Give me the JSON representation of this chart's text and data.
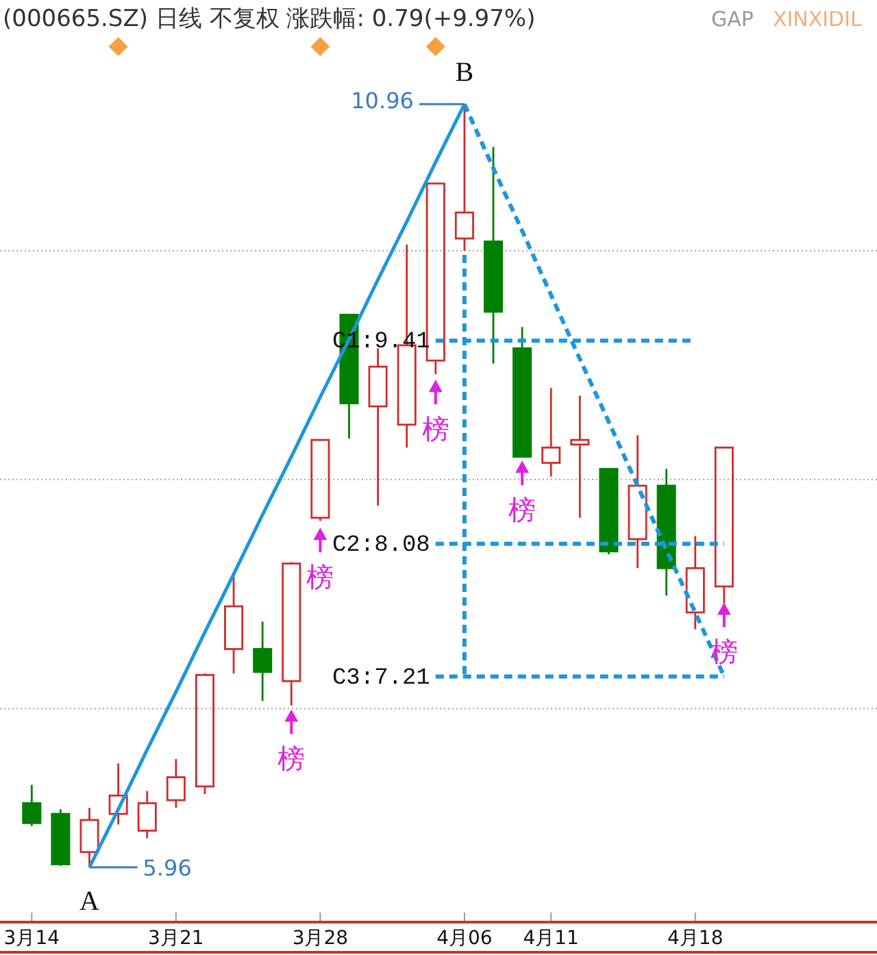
{
  "chart_data": {
    "type": "candlestick",
    "title": "(000665.SZ) 日线 不复权 涨跌幅: 0.79(+9.97%)",
    "annotations": [
      "GAP",
      "XINXIDIL",
      {
        "text": "A",
        "y": 5.96
      },
      {
        "text": "B",
        "x": "4月06",
        "y": 10.96
      }
    ],
    "categories": [
      "3月14",
      null,
      null,
      null,
      null,
      "3月21",
      null,
      null,
      null,
      null,
      "3月28",
      null,
      null,
      null,
      null,
      "4月06",
      null,
      null,
      "4月11",
      null,
      null,
      null,
      null,
      "4月18",
      null
    ],
    "ohlc": [
      [
        6.38,
        6.5,
        6.23,
        6.25
      ],
      [
        6.31,
        6.34,
        5.97,
        5.98
      ],
      [
        6.06,
        6.35,
        5.96,
        6.27
      ],
      [
        6.31,
        6.64,
        6.24,
        6.43
      ],
      [
        6.2,
        6.46,
        6.15,
        6.38
      ],
      [
        6.4,
        6.67,
        6.35,
        6.55
      ],
      [
        6.49,
        7.23,
        6.44,
        7.22
      ],
      [
        7.39,
        7.87,
        7.23,
        7.67
      ],
      [
        7.39,
        7.57,
        7.05,
        7.24
      ],
      [
        7.18,
        7.96,
        7.02,
        7.95
      ],
      [
        8.25,
        8.76,
        8.23,
        8.76
      ],
      [
        9.58,
        9.58,
        8.77,
        9.0
      ],
      [
        8.98,
        9.36,
        8.33,
        9.24
      ],
      [
        8.86,
        10.04,
        8.71,
        9.38
      ],
      [
        9.28,
        10.44,
        9.19,
        10.44
      ],
      [
        10.08,
        10.96,
        10.0,
        10.25
      ],
      [
        10.06,
        10.68,
        9.26,
        9.6
      ],
      [
        9.36,
        9.5,
        8.65,
        8.65
      ],
      [
        8.61,
        9.1,
        8.52,
        8.71
      ],
      [
        8.73,
        9.05,
        8.25,
        8.76
      ],
      [
        8.57,
        8.57,
        8.01,
        8.03
      ],
      [
        8.11,
        8.79,
        7.92,
        8.46
      ],
      [
        8.46,
        8.57,
        7.74,
        7.92
      ],
      [
        7.63,
        8.13,
        7.52,
        7.92
      ],
      [
        7.8,
        8.71,
        7.69,
        8.71
      ]
    ],
    "colors": [
      "#008000",
      "#008000",
      "#d02c2c",
      "#d02c2c",
      "#d02c2c",
      "#d02c2c",
      "#d02c2c",
      "#d02c2c",
      "#008000",
      "#d02c2c",
      "#d02c2c",
      "#008000",
      "#d02c2c",
      "#d02c2c",
      "#d02c2c",
      "#d02c2c",
      "#008000",
      "#008000",
      "#d02c2c",
      "#d02c2c",
      "#008000",
      "#d02c2c",
      "#008000",
      "#d02c2c",
      "#d02c2c"
    ],
    "yticks": [
      {
        "value": 7,
        "label": null
      },
      {
        "value": 8.5,
        "label": null
      },
      {
        "value": 10,
        "label": null
      }
    ],
    "grid": "y",
    "tick_labels": "x",
    "ref_lines": [
      {
        "axis": "x",
        "value": "4月06",
        "color": "#1e96dc",
        "line_style": "dashed"
      }
    ],
    "series": [
      {
        "type": "line",
        "color": "#1e96dc",
        "line_style": "solid",
        "values": [
          null,
          null,
          5.96,
          6.34,
          6.73,
          7.11,
          7.5,
          7.88,
          8.27,
          8.65,
          9.04,
          9.42,
          9.81,
          10.19,
          10.58,
          10.96,
          null,
          null,
          null,
          null,
          null,
          null,
          null,
          null,
          null
        ],
        "value_labels": [
          null,
          null,
          "5.96",
          null,
          null,
          null,
          null,
          null,
          null,
          null,
          null,
          null,
          null,
          null,
          null,
          "10.96",
          null,
          null,
          null,
          null,
          null,
          null,
          null,
          null,
          null
        ]
      },
      {
        "type": "line",
        "color": "#1e96dc",
        "line_style": "dashed",
        "values": [
          null,
          null,
          null,
          null,
          null,
          null,
          null,
          null,
          null,
          null,
          null,
          null,
          null,
          null,
          null,
          10.96,
          10.54,
          10.13,
          9.71,
          9.29,
          8.88,
          8.46,
          8.04,
          7.63,
          7.21
        ]
      },
      {
        "type": "line",
        "color": "#1e96dc",
        "line_style": "dashed",
        "values": [
          null,
          null,
          null,
          null,
          null,
          null,
          null,
          null,
          null,
          null,
          null,
          null,
          null,
          null,
          9.41,
          9.41,
          9.41,
          9.41,
          9.41,
          9.41,
          9.41,
          9.41,
          9.41,
          9.41,
          null
        ],
        "value_labels": [
          null,
          null,
          null,
          null,
          null,
          null,
          null,
          null,
          null,
          null,
          null,
          null,
          null,
          null,
          "C1:9.41",
          null,
          null,
          null,
          null,
          null,
          null,
          null,
          null,
          null,
          null
        ]
      },
      {
        "type": "line",
        "color": "#1e96dc",
        "line_style": "dashed",
        "values": [
          null,
          null,
          null,
          null,
          null,
          null,
          null,
          null,
          null,
          null,
          null,
          null,
          null,
          null,
          8.08,
          8.08,
          8.08,
          8.08,
          8.08,
          8.08,
          8.08,
          8.08,
          8.08,
          8.08,
          8.08
        ],
        "value_labels": [
          null,
          null,
          null,
          null,
          null,
          null,
          null,
          null,
          null,
          null,
          null,
          null,
          null,
          null,
          "C2:8.08",
          null,
          null,
          null,
          null,
          null,
          null,
          null,
          null,
          null,
          null
        ]
      },
      {
        "type": "line",
        "color": "#1e96dc",
        "line_style": "dashed",
        "values": [
          null,
          null,
          null,
          null,
          null,
          null,
          null,
          null,
          null,
          null,
          null,
          null,
          null,
          null,
          7.21,
          7.21,
          7.21,
          7.21,
          7.21,
          7.21,
          7.21,
          7.21,
          7.21,
          7.21,
          7.21
        ],
        "value_labels": [
          null,
          null,
          null,
          null,
          null,
          null,
          null,
          null,
          null,
          null,
          null,
          null,
          null,
          null,
          "C3:7.21",
          null,
          null,
          null,
          null,
          null,
          null,
          null,
          null,
          null,
          null
        ]
      },
      {
        "type": "scatter",
        "name": "榜",
        "color": "#e020e0",
        "marker": "triangle",
        "values": [
          null,
          null,
          null,
          null,
          null,
          null,
          null,
          null,
          null,
          6.95,
          8.14,
          null,
          null,
          null,
          9.11,
          null,
          null,
          8.58,
          null,
          null,
          null,
          null,
          null,
          null,
          7.65
        ]
      }
    ]
  }
}
